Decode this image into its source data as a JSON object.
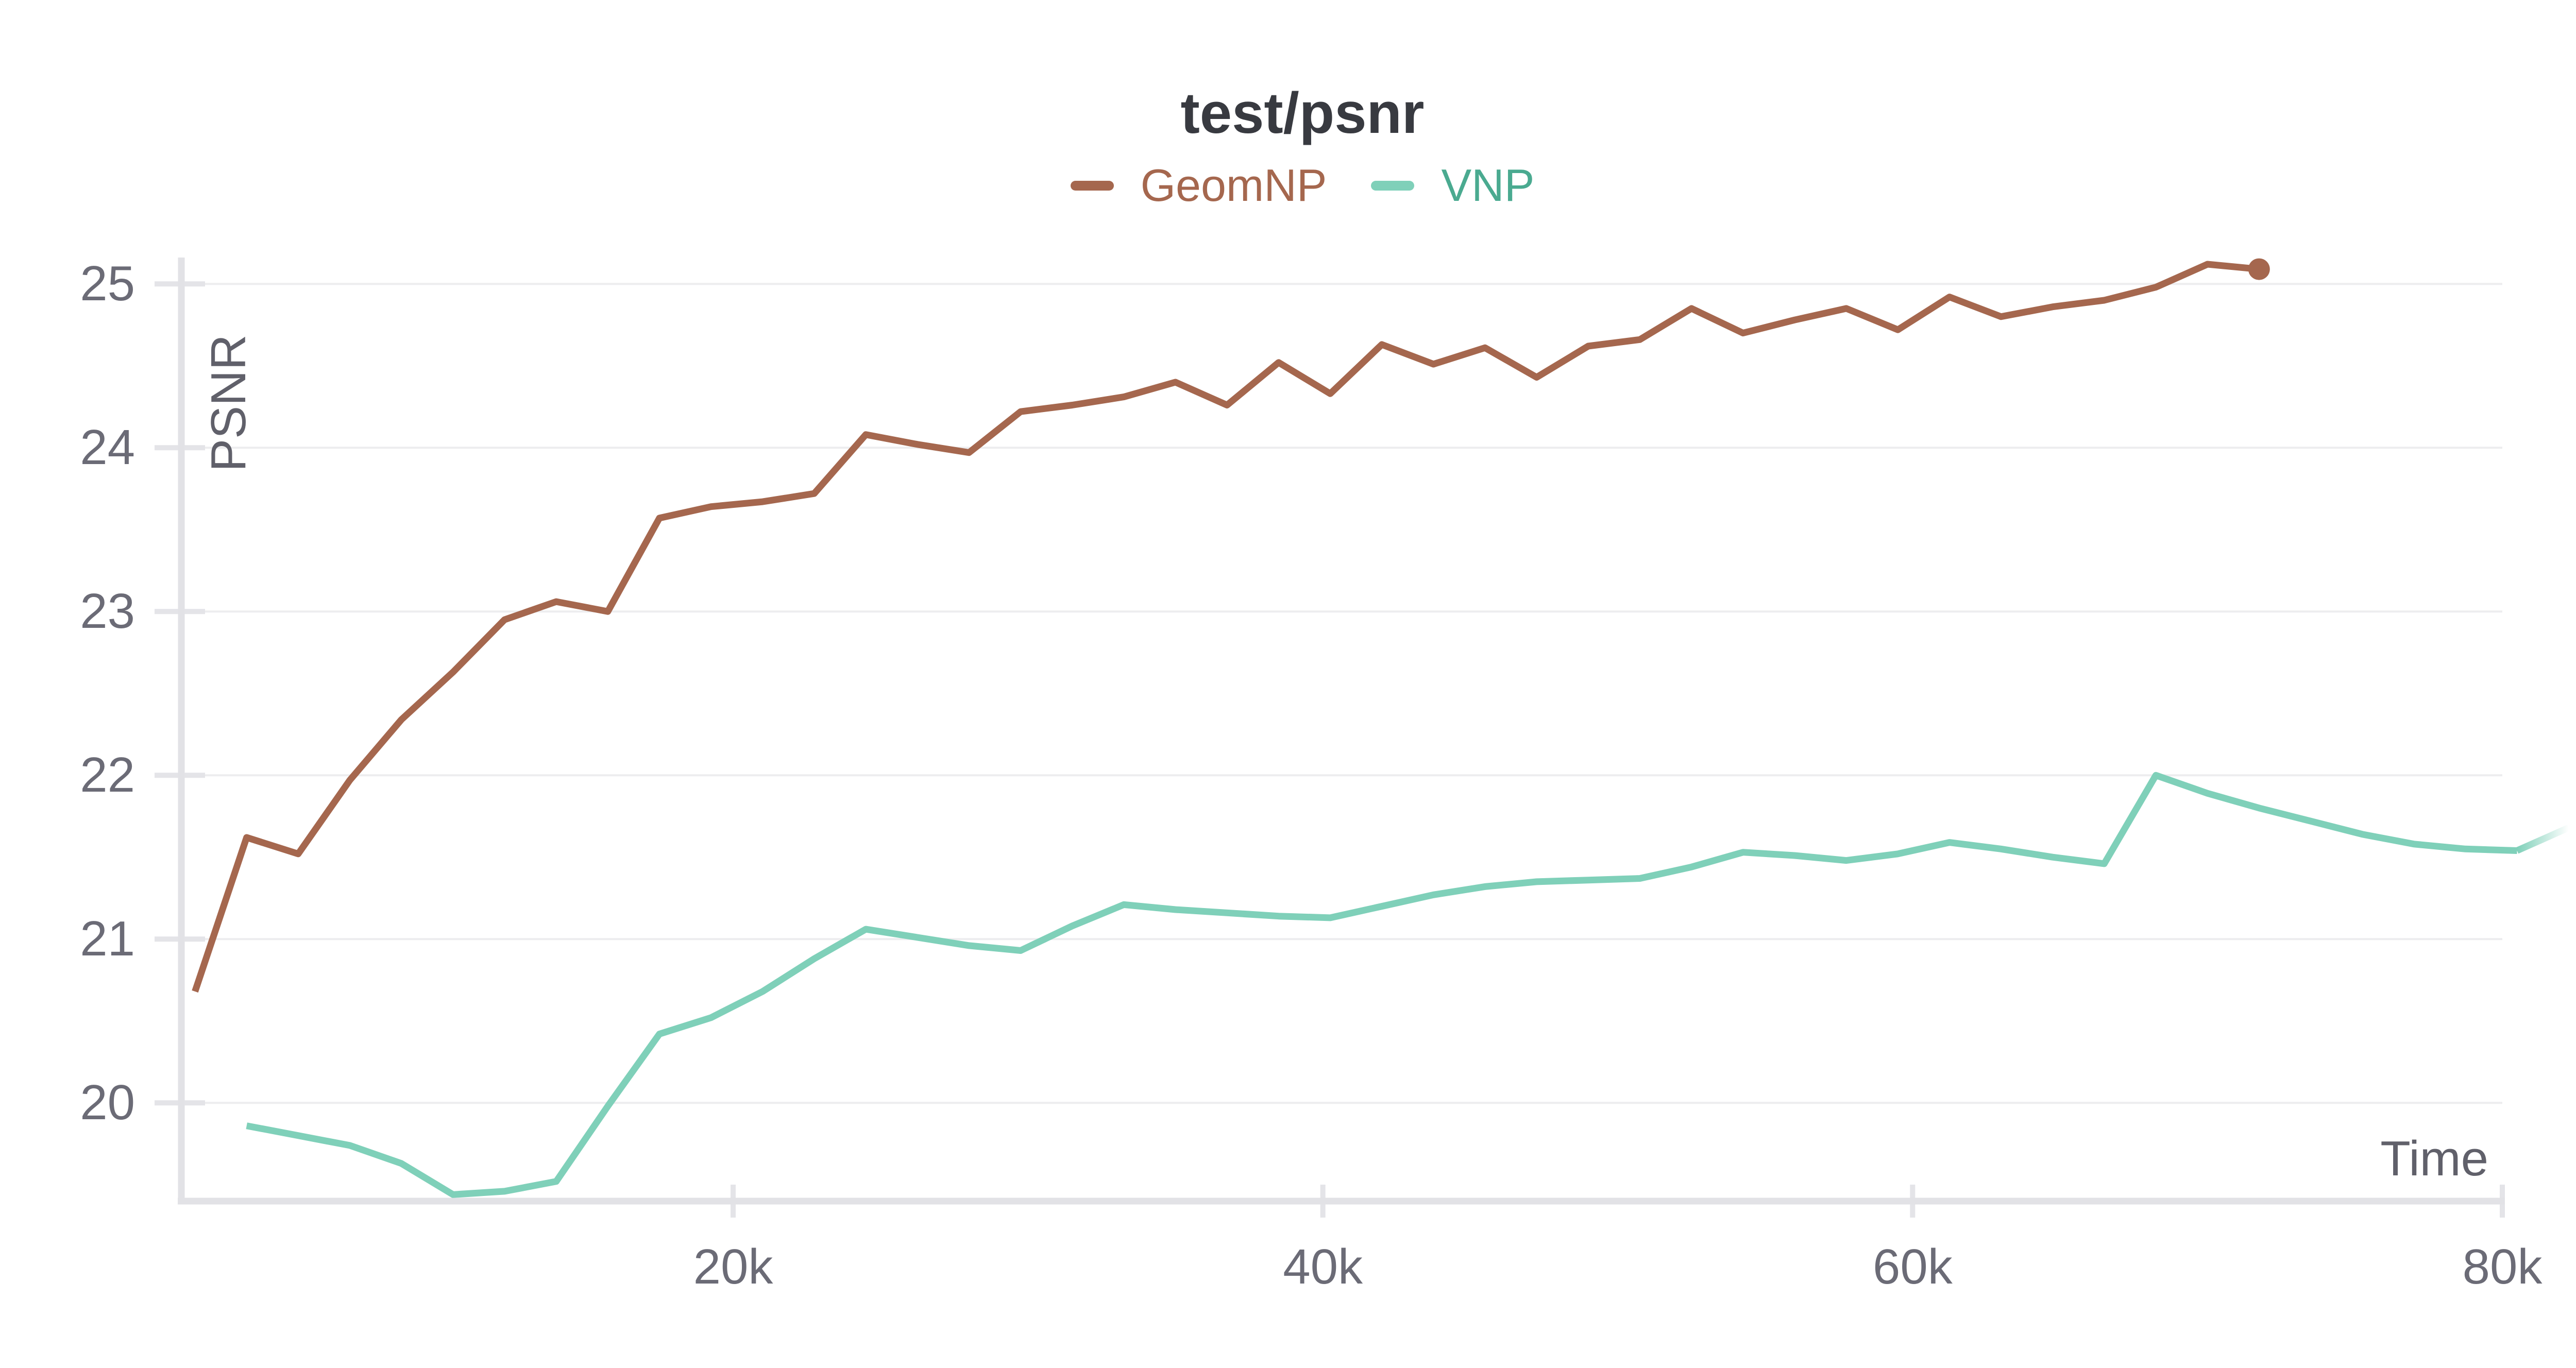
{
  "header": {
    "title": "test/psnr"
  },
  "legend": {
    "items": [
      {
        "label": "GeomNP",
        "swatch_color": "#a5674e",
        "text_color": "#a5674e"
      },
      {
        "label": "VNP",
        "swatch_color": "#7fd0b9",
        "text_color": "#4aaa90"
      }
    ]
  },
  "axes": {
    "x_label": "Time",
    "y_label": "PSNR"
  },
  "colors": {
    "geomnp_line": "#a5674e",
    "vnp_line": "#7fd0b9",
    "gridline": "#ededef",
    "axis_line": "#e2e2e6",
    "tick_mark": "#e4e4e8",
    "tick_text": "#6b6b76",
    "title_text": "#383a40"
  },
  "chart_data": {
    "type": "line",
    "title": "test/psnr",
    "xlabel": "Time",
    "ylabel": "PSNR",
    "legend_position": "top-center",
    "grid": "horizontal-only",
    "x_ticks": [
      {
        "label": "20k",
        "value": 20000
      },
      {
        "label": "40k",
        "value": 40000
      },
      {
        "label": "60k",
        "value": 60000
      },
      {
        "label": "80k",
        "value": 80000
      }
    ],
    "y_ticks": [
      {
        "label": "25",
        "value": 25
      },
      {
        "label": "24",
        "value": 24
      },
      {
        "label": "23",
        "value": 23
      },
      {
        "label": "22",
        "value": 22
      },
      {
        "label": "21",
        "value": 21
      },
      {
        "label": "20",
        "value": 20
      }
    ],
    "xlim": [
      1280,
      82900
    ],
    "ylim": [
      19.4,
      25.16
    ],
    "series": [
      {
        "name": "GeomNP",
        "color": "#a5674e",
        "x_start": 1750,
        "x_step": 1750,
        "end_marker": "dot",
        "tail_fade": false,
        "values": [
          20.68,
          21.62,
          21.52,
          21.97,
          22.34,
          22.63,
          22.95,
          23.06,
          23.0,
          23.57,
          23.64,
          23.67,
          23.72,
          24.08,
          24.02,
          23.97,
          24.22,
          24.26,
          24.31,
          24.4,
          24.26,
          24.52,
          24.33,
          24.63,
          24.51,
          24.61,
          24.43,
          24.62,
          24.66,
          24.85,
          24.7,
          24.78,
          24.85,
          24.72,
          24.92,
          24.8,
          24.86,
          24.9,
          24.98,
          25.12,
          25.09
        ]
      },
      {
        "name": "VNP",
        "color": "#7fd0b9",
        "x_start": 3500,
        "x_step": 1750,
        "end_marker": "none",
        "tail_fade": true,
        "values": [
          19.86,
          19.8,
          19.74,
          19.63,
          19.44,
          19.46,
          19.52,
          19.98,
          20.42,
          20.52,
          20.68,
          20.88,
          21.06,
          21.01,
          20.96,
          20.93,
          21.08,
          21.21,
          21.18,
          21.16,
          21.14,
          21.13,
          21.2,
          21.27,
          21.32,
          21.35,
          21.36,
          21.37,
          21.44,
          21.53,
          21.51,
          21.48,
          21.52,
          21.59,
          21.55,
          21.5,
          21.46,
          22.0,
          21.89,
          21.8,
          21.72,
          21.64,
          21.58,
          21.55,
          21.54,
          21.68
        ]
      }
    ]
  }
}
